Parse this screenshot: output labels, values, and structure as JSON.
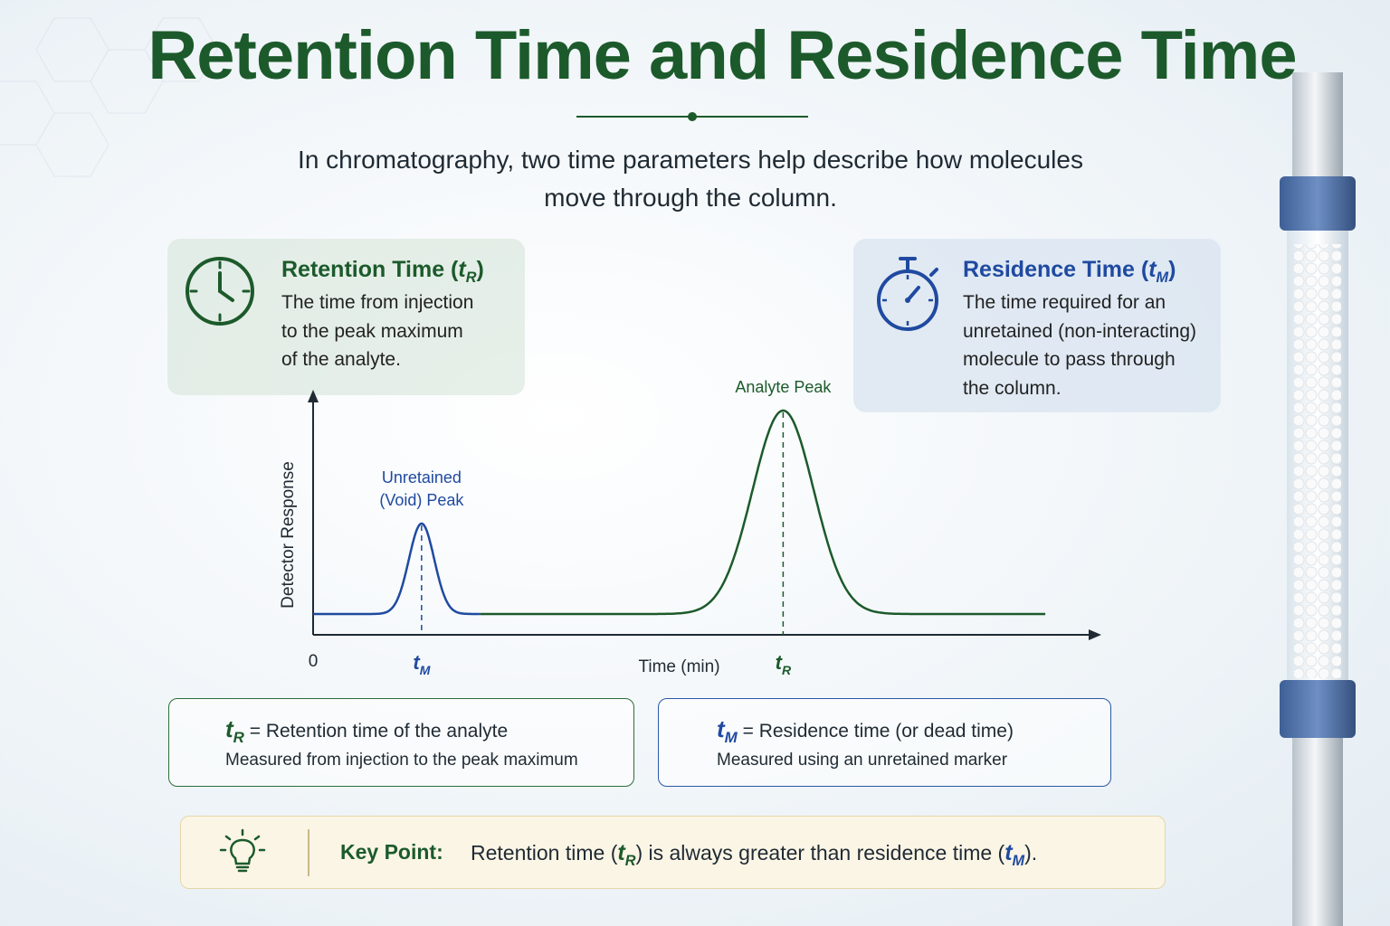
{
  "title": "Retention Time and Residence Time",
  "subtitle_line1": "In chromatography, two time parameters help describe how molecules",
  "subtitle_line2": "move through the column.",
  "retention_card": {
    "title": "Retention Time (",
    "symbol": "t",
    "sub": "R",
    "close": ")",
    "lines": [
      "The time from injection",
      "to the peak maximum",
      "of the analyte."
    ]
  },
  "residence_card": {
    "title": "Residence Time (",
    "symbol": "t",
    "sub": "M",
    "close": ")",
    "lines": [
      "The time required for an",
      "unretained (non-interacting)",
      "molecule to pass through",
      "the column."
    ]
  },
  "chart_data": {
    "type": "line",
    "ylabel": "Detector Response",
    "xlabel": "Time (min)",
    "x_origin_label": "0",
    "tick_labels": [
      {
        "symbol": "t",
        "sub": "M",
        "x": 1.2
      },
      {
        "symbol": "t",
        "sub": "R",
        "x": 5.2
      }
    ],
    "series": [
      {
        "name": "Unretained (Void) Peak",
        "label_lines": [
          "Unretained",
          "(Void) Peak"
        ],
        "center": 1.2,
        "height": 0.4,
        "color": "#1f4aa0"
      },
      {
        "name": "Analyte Peak",
        "label_lines": [
          "Analyte Peak"
        ],
        "center": 5.2,
        "height": 0.9,
        "color": "#1c5a2b"
      }
    ],
    "xlim": [
      0,
      8.6
    ],
    "ylim": [
      0,
      1
    ],
    "baseline": 0
  },
  "definitions": [
    {
      "symbol": "t",
      "sub": "R",
      "eq": "=  Retention time of the analyte",
      "note": "Measured from injection to the peak maximum"
    },
    {
      "symbol": "t",
      "sub": "M",
      "eq": "=  Residence time (or dead time)",
      "note": "Measured using an unretained marker"
    }
  ],
  "key_point": {
    "label": "Key Point:",
    "text_a": "Retention time (",
    "sym_a": "t",
    "sub_a": "R",
    "text_b": ") is always greater than residence time (",
    "sym_b": "t",
    "sub_b": "M",
    "text_c": ")."
  },
  "colors": {
    "green": "#1c5a2b",
    "blue": "#1f4aa0",
    "keypoint_bg": "#fbf5e6"
  },
  "icons": [
    "clock-icon",
    "stopwatch-icon",
    "lightbulb-icon"
  ]
}
